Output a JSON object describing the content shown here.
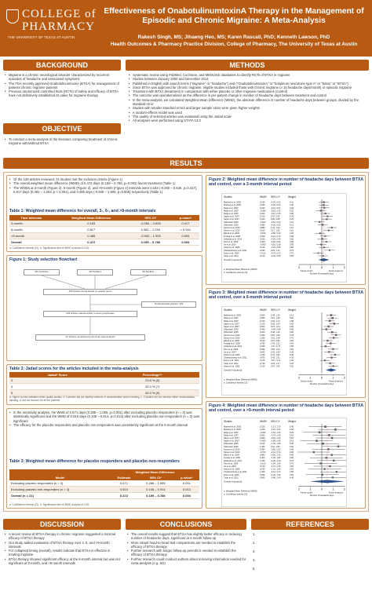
{
  "header": {
    "logo_line1": "COLLEGE of",
    "logo_line2": "PHARMACY",
    "logo_sub": "THE UNIVERSITY OF TEXAS AT AUSTIN",
    "title": "Effectiveness of OnabotulinumtoxinA Therapy in the Management of Episodic and Chronic Migraine: A Meta-Analysis",
    "authors": "Rakesh Singh, MS; Jihaeng Heo, MS; Karen Rascati, PhD; Kenneth Lawson, PhD",
    "affiliation": "Health Outcomes & Pharmacy Practice Division, College of Pharmacy, The University of Texas at Austin"
  },
  "sections": {
    "background": "BACKGROUND",
    "methods": "METHODS",
    "objective": "OBJECTIVE",
    "results": "RESULTS",
    "discussion": "DISCUSSION",
    "conclusions": "CONCLUSIONS",
    "references": "REFERENCES"
  },
  "background_items": [
    "Migraine is a chronic neurological disorder characterized by recurrent episodes of headache and associated symptoms",
    "The FDA recently approved OnabotulinumtoxinA (BTXA) for management of patients chronic migraine patients",
    "Previous randomized controlled trials (RCTs) of safety and efficacy of BTXA have not definitively established its value for migraine therapy"
  ],
  "methods_items": [
    "Systematic review using PubMed, Cochrane, and MEDLINE databases to identify RCTs of BTXA in migraine",
    "Studies between January 2000 and December 2014",
    "Published in English with search terms (\"migraine\" or \"headache\") and (\"OnabotulinumtoxinA\" or \"botulinum neurotoxin type A\" or \"botox\" or \"BTXA\")",
    "Since BTXA was approved for chronic migraine, eligible studies included those with chronic migraine (≥ 15 headache days/month) or episodic migraine",
    "Treatment with BTXA (treatment) in comparison with either placebo or other migraine medications (control)",
    "The outcome was operationalized as the difference in per-patient change in number of headache days between treatment and control",
    "In the meta-analysis, we calculated Weighted Mean Difference (WMD), the absolute difference in number of headache days between groups, divided by the standard error",
    "Studies with smaller standard errors and larger sample sizes were given higher weights",
    "A random-effects model was used",
    "The quality of selected articles was evaluated using the Jadad scale",
    "All analyses were performed using STATA 13.0"
  ],
  "objective_items": [
    "To conduct a meta-analysis of the literature comparing treatment of chronic migraine with/without BTXA"
  ],
  "results_items": [
    "Of the 129 articles reviewed, 21 studies met the inclusion criteria (Figure 1)",
    "The overall weighted mean difference (WMD) of 0.472 days (0.159 – 0.786, p=0.003) favors treatment (Table 1)",
    "The WMDs at 3-month (Figure 2), 6-month (Figure 3), and >9-month (Figure 4) intervals were 0.183 (-0.260 – 0.626, p=0.417), 0.817 days (0.381 – 1.253, p < 0.001), and 0.485 days (-0.940 – 1.909, p=0.505) respectively (Table 1)"
  ],
  "table1": {
    "title": "Table 1: Weighted mean difference for overall, 3-, 6-, and >9-month intervals",
    "headers": [
      "Time Intervals",
      "Weighted Mean Difference",
      "95% CI*",
      "p-value*"
    ],
    "rows": [
      [
        "3-month",
        "0.183",
        "-0.260 – 0.626",
        "0.417"
      ],
      [
        "6-month",
        "0.817",
        "0.381 – 1.253",
        "< 0.001"
      ],
      [
        ">9-month",
        "0.485",
        "-0.940 – 1.909",
        "0.505"
      ],
      [
        "Overall",
        "0.472",
        "0.159 – 0.786",
        "0.003"
      ]
    ],
    "note": "a. Confidence Interval (CI), b. Significance test of WMD at alpha of 0.05"
  },
  "figure1": {
    "title": "Figure 1: Study selection flowchart",
    "box1": "38 Cochrane",
    "box2": "15 PubMed",
    "box3": "80 Medline",
    "box4": "465 articles found based on search terms",
    "box5": "Nonduplicated articles: 129",
    "box6": "129 articles selected after removing duplicates",
    "box7": "21 articles constituted to the final meta-analysis"
  },
  "table2": {
    "title": "Table 2: Jadad scores for the articles included in the meta-analysis",
    "headers": [
      "Jadad* Score",
      "Percentage**"
    ],
    "rows": [
      [
        "3",
        "23.8 % (5)"
      ],
      [
        "4",
        "33.3 % (7)"
      ],
      [
        "5",
        "42.9 % (9)"
      ]
    ],
    "note": "a. Higher scores indicates better quality studies. b. 5 studies did not identify methods of randomization and/or blinding. c. 2 studies did not mention either randomization, blinding, or did not account for all the patients"
  },
  "sensitivity_items": [
    "In the sensitivity analysis, the WMD of 0.671 days (0.286 – 1.055, p=0.001) after excluding placebo responders (n = 3) was statistically significant and the WMD of 0.510 days (0.106 – 0.914, p=0.013) after excluding placebo non-responders (n = 3) was significant",
    "The efficacy for the placebo responders and placebo non-responders was consistently significant at the 6-month interval"
  ],
  "table3": {
    "title": "Table 3: Weighted mean difference for placebo responders and placebo non-responders",
    "group_header": "Weighted Mean Difference",
    "headers": [
      "Model",
      "Estimate",
      "95% CI*",
      "p-value*"
    ],
    "rows": [
      [
        "Excluding placebo responders (n = 3)",
        "0.671",
        "0.286 – 1.055",
        "0.001"
      ],
      [
        "Excluding placebo non-responders (n = 3)",
        "0.510",
        "0.106 – 0.914",
        "0.013"
      ],
      [
        "Overall (n = 21)",
        "0.472",
        "0.159 – 0.786",
        "0.003"
      ]
    ],
    "note": "a. Confidence Interval (CI), b. Significance test of WMD at alpha of 0.05"
  },
  "figure2": {
    "title": "Figure 2: Weighted mean difference in number of headache days between BTXA and control, over a 3-month interval period"
  },
  "figure3": {
    "title": "Figure 3: Weighted mean difference in number of headache days between BTXA and control, over a 6-month interval period"
  },
  "figure4": {
    "title": "Figure 4: Weighted mean difference in number of headache days between BTXA and control, over a >9-month interval period"
  },
  "forest_common": {
    "col_study": "Studies",
    "col_wmd": "WMD*",
    "col_ci": "95% CI*",
    "col_weight": "Weight",
    "overall_label": "Overall (I-squared)",
    "axis_ticks": [
      "2",
      "1",
      "0",
      "1",
      "2"
    ],
    "favors_left": "Favors control",
    "favors_right": "Favors treatment",
    "xlabel": "Number of headache days",
    "note_a": "a. Weighted Mean Difference (WMD)",
    "note_b": "b. Confidence Interval (CI)"
  },
  "forest2_rows": [
    [
      "Mathew et al. 2005",
      "0.190",
      "-0.25, 0.63",
      "4.41"
    ],
    [
      "Mathew et al. 2005",
      "0.180",
      "-0.26, 0.62",
      "4.40"
    ],
    [
      "Relja et al. 2007",
      "0.230",
      "-0.21, 0.67",
      "4.39"
    ],
    [
      "Relja et al. 2007",
      "-0.090",
      "-0.53, 0.35",
      "4.32"
    ],
    [
      "Relja et al. 2007",
      "0.320",
      "-0.12, 0.76",
      "4.30"
    ],
    [
      "Saper et al. 2007",
      "0.510",
      "0.07, 0.95",
      "4.20"
    ],
    [
      "Saper et al. 2007",
      "0.440",
      "0.00, 0.88",
      "4.25"
    ],
    [
      "Silberstein 2005",
      "-0.200",
      "-0.64, 0.24",
      "4.21"
    ],
    [
      "Silberstein 2005",
      "0.080",
      "-0.36, 0.52",
      "4.31"
    ],
    [
      "Aurora et al. 2010",
      "0.880",
      "0.44, 1.32",
      "4.10"
    ],
    [
      "Diener et al. 2010",
      "0.610",
      "0.17, 1.05",
      "4.15"
    ],
    [
      "Elkind et al. 2006",
      "-0.150",
      "-0.59, 0.29",
      "4.05"
    ],
    [
      "Freitag et al. 2008",
      "0.300",
      "-0.14, 0.74",
      "3.98"
    ],
    [
      "Hollanda et al. 2014",
      "0.050",
      "-0.39, 0.49",
      "3.95"
    ],
    [
      "Petri et al. 2009",
      "0.400",
      "-0.04, 0.84",
      "3.90"
    ],
    [
      "Vo et al. 2007",
      "-0.060",
      "-0.50, 0.38",
      "3.85"
    ],
    [
      "Anand et al. 2006",
      "0.210",
      "-0.23, 0.65",
      "3.80"
    ],
    [
      "Chankrachang et al. 2011",
      "0.690",
      "0.25, 1.13",
      "3.75"
    ],
    [
      "Evers et al. 2004",
      "-0.310",
      "-0.75, 0.13",
      "3.70"
    ],
    [
      "Cady et al. 2011",
      "0.120",
      "-0.32, 0.56",
      "3.65"
    ]
  ],
  "forest3_rows": [
    [
      "Mathew et al. 2005",
      "0.820",
      "0.38, 1.26",
      "5.12"
    ],
    [
      "Relja et al. 2007",
      "0.950",
      "0.51, 1.39",
      "5.02"
    ],
    [
      "Relja et al. 2007",
      "0.700",
      "0.26, 1.14",
      "4.98"
    ],
    [
      "Saper et al. 2007",
      "1.100",
      "0.66, 1.54",
      "4.95"
    ],
    [
      "Saper et al. 2007",
      "0.600",
      "0.16, 1.04",
      "4.90"
    ],
    [
      "Silberstein 2005",
      "0.400",
      "-0.04, 0.84",
      "4.85"
    ],
    [
      "Silberstein 2005",
      "0.920",
      "0.48, 1.36",
      "4.80"
    ],
    [
      "Aurora et al. 2010",
      "1.250",
      "0.81, 1.69",
      "4.78"
    ],
    [
      "Diener et al. 2010",
      "1.050",
      "0.61, 1.49",
      "4.70"
    ],
    [
      "Elkind et al. 2006",
      "0.510",
      "0.07, 0.95",
      "4.66"
    ],
    [
      "Freitag et al. 2008",
      "0.780",
      "0.34, 1.22",
      "4.60"
    ],
    [
      "Hollanda et al. 2014",
      "0.330",
      "-0.11, 0.77",
      "4.55"
    ],
    [
      "Petri et al. 2009",
      "0.990",
      "0.55, 1.43",
      "4.50"
    ],
    [
      "Vo et al. 2007",
      "0.640",
      "0.20, 1.08",
      "4.45"
    ],
    [
      "Anand et al. 2006",
      "1.180",
      "0.74, 1.62",
      "4.40"
    ],
    [
      "Chankrachang et al. 2011",
      "0.870",
      "0.43, 1.31",
      "4.35"
    ],
    [
      "Evers et al. 2004",
      "0.270",
      "-0.17, 0.71",
      "4.30"
    ],
    [
      "Cady et al. 2011",
      "0.730",
      "0.29, 1.17",
      "4.25"
    ],
    [
      "Anand et al. 2006",
      "1.010",
      "0.57, 1.45",
      "4.20"
    ]
  ],
  "forest4_rows": [
    [
      "Mathew et al. 2005",
      "0.310",
      "-1.13, 1.75",
      "5.40"
    ],
    [
      "Mathew et al. 2005",
      "1.200",
      "-0.24, 2.64",
      "5.30"
    ],
    [
      "Relja et al. 2007",
      "-0.200",
      "-1.64, 1.24",
      "5.25"
    ],
    [
      "Relja et al. 2007",
      "0.650",
      "-0.79, 2.09",
      "5.20"
    ],
    [
      "Saper et al. 2007",
      "0.900",
      "-0.54, 2.34",
      "5.15"
    ],
    [
      "Saper et al. 2007",
      "-0.450",
      "-1.89, 0.99",
      "5.10"
    ],
    [
      "Silberstein 2005",
      "0.120",
      "-1.32, 1.56",
      "5.05"
    ],
    [
      "Silberstein 2005",
      "1.450",
      "0.01, 2.89",
      "5.00"
    ],
    [
      "Aurora et al. 2010",
      "0.580",
      "-0.86, 2.02",
      "4.95"
    ],
    [
      "Diener et al. 2010",
      "-0.700",
      "-2.14, 0.74",
      "4.90"
    ],
    [
      "Elkind et al. 2006",
      "0.880",
      "-0.56, 2.32",
      "4.85"
    ],
    [
      "Freitag et al. 2008",
      "0.400",
      "-1.04, 1.84",
      "4.80"
    ],
    [
      "Hollanda et al. 2014",
      "1.050",
      "-0.39, 2.49",
      "4.75"
    ],
    [
      "Petri et al. 2009",
      "-0.100",
      "-1.54, 1.34",
      "4.70"
    ],
    [
      "Vo et al. 2007",
      "0.720",
      "-0.72, 2.16",
      "4.65"
    ],
    [
      "Anand et al. 2006",
      "0.250",
      "-1.19, 1.69",
      "4.60"
    ],
    [
      "Chankrachang et al. 2011",
      "1.300",
      "-0.14, 2.74",
      "4.55"
    ],
    [
      "Evers et al. 2004",
      "0.050",
      "-1.39, 1.49",
      "4.50"
    ],
    [
      "Cady et al. 2011",
      "0.960",
      "-0.48, 2.40",
      "4.45"
    ]
  ],
  "chart_data": [
    {
      "type": "scatter",
      "title": "Figure 2: Weighted mean difference in number of headache days between BTXA and control, over a 3-month interval period",
      "xlabel": "Number of headache days",
      "xlim": [
        -2,
        2
      ],
      "overall": {
        "value": 0.183,
        "ci": [
          -0.26,
          0.626
        ]
      }
    },
    {
      "type": "scatter",
      "title": "Figure 3: Weighted mean difference in number of headache days between BTXA and control, over a 6-month interval period",
      "xlabel": "Number of headache days",
      "xlim": [
        -2,
        2
      ],
      "overall": {
        "value": 0.817,
        "ci": [
          0.381,
          1.253
        ]
      }
    },
    {
      "type": "scatter",
      "title": "Figure 4: Weighted mean difference in number of headache days between BTXA and control, over a >9-month interval period",
      "xlabel": "Number of headache days",
      "xlim": [
        -2,
        2
      ],
      "overall": {
        "value": 0.485,
        "ci": [
          -0.94,
          1.909
        ]
      }
    }
  ],
  "discussion_items": [
    "A recent review of BTXA therapy in chronic migraine suggested a minimal efficacy of BTXA therapy",
    "Our study added evaluation of BTXA therapy over 3, 6, and >9-month intervals",
    "For collapsed timing (overall), results indicate that BTXA is effective in treating migraine",
    "BTXA therapy showed significant efficacy at the 6-month interval but was not significant at 3-month, and >9-month intervals"
  ],
  "conclusions_items": [
    "The overall results suggest that BTXA has slightly better efficacy in reducing number of headache days, significant at 6 month follow-up",
    "More robust head-to-head trial comparisons are needed to establish the efficacy of BTXA therapy",
    "Further research with longer follow-up periods is needed to establish the efficacy of BTXA therapy",
    "Further research could conduct authors about removing information needed for meta-analysis (e.g. SD)"
  ],
  "references_items": [
    "1.",
    "2.",
    "3.",
    "4.",
    "5."
  ]
}
